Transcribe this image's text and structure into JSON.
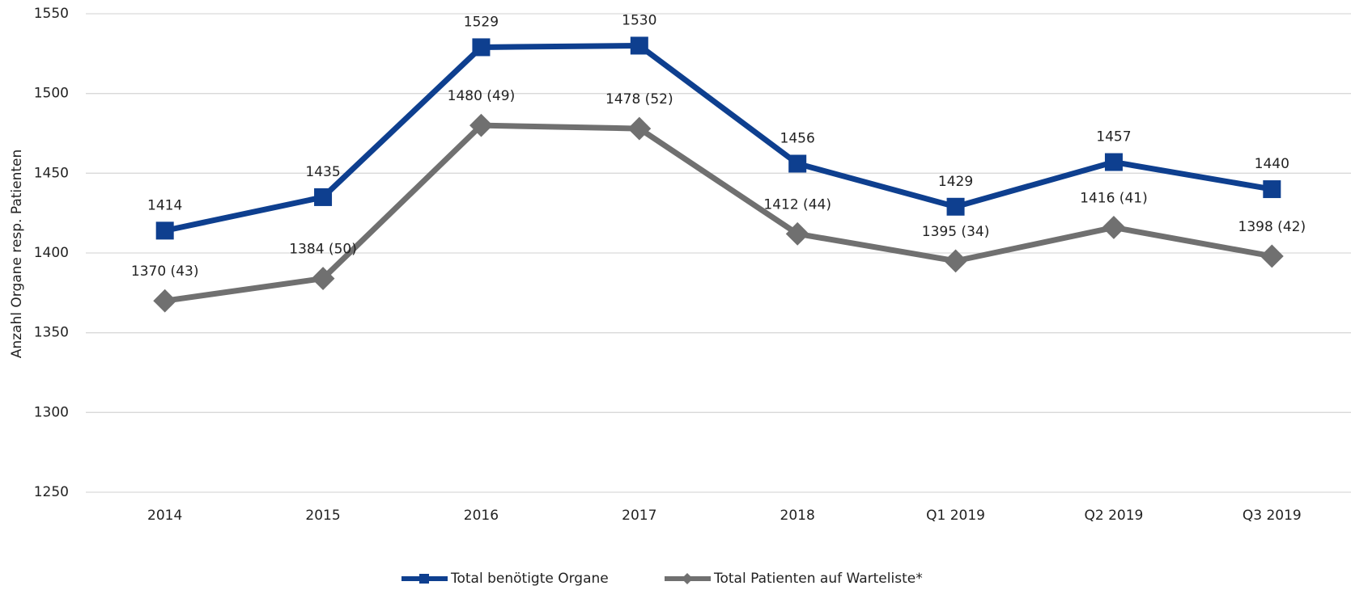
{
  "chart_data": {
    "type": "line",
    "y_label": "Anzahl Organe resp. Patienten",
    "categories": [
      "2014",
      "2015",
      "2016",
      "2017",
      "2018",
      "Q1 2019",
      "Q2 2019",
      "Q3 2019"
    ],
    "series": [
      {
        "name": "Total benötigte Organe",
        "color": "#0e3f8f",
        "marker": "square",
        "values": [
          1414,
          1435,
          1529,
          1530,
          1456,
          1429,
          1457,
          1440
        ]
      },
      {
        "name": "Total Patienten auf Warteliste*",
        "color": "#707070",
        "marker": "diamond",
        "values": [
          1370,
          1384,
          1480,
          1478,
          1412,
          1395,
          1416,
          1398
        ],
        "value_labels": [
          "1370 (43)",
          "1384 (50)",
          "1480 (49)",
          "1478 (52)",
          "1412 (44)",
          "1395 (34)",
          "1416 (41)",
          "1398 (42)"
        ]
      }
    ],
    "ylim": [
      1250,
      1550
    ],
    "yticks": [
      1250,
      1300,
      1350,
      1400,
      1450,
      1500,
      1550
    ],
    "grid": true,
    "legend": "bottom"
  }
}
